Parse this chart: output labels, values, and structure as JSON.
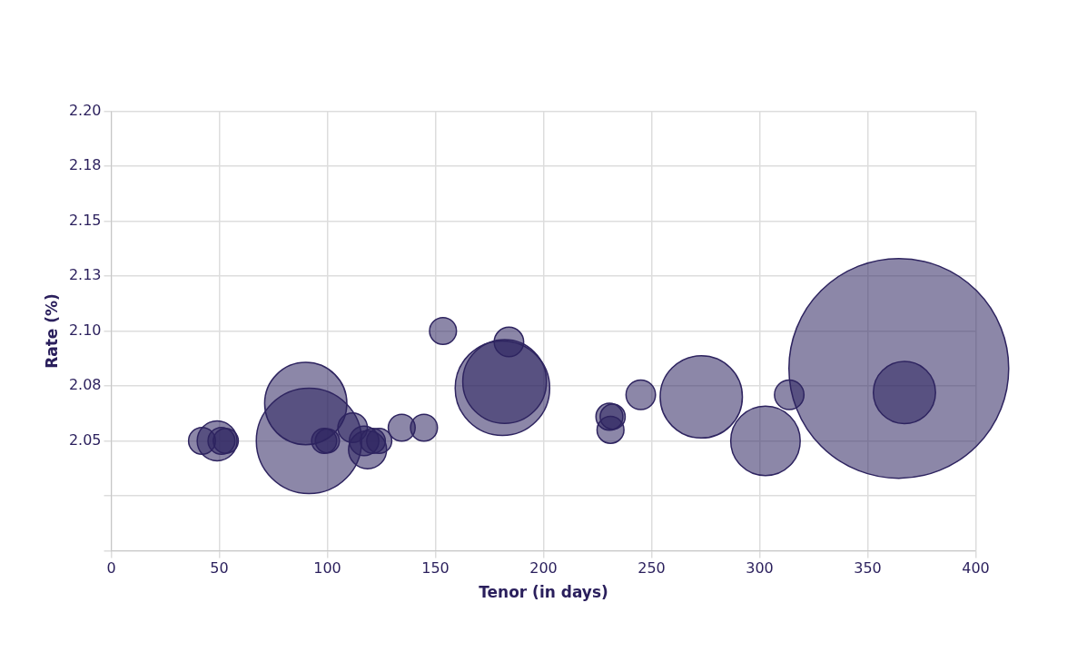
{
  "chart_data": {
    "type": "bubble",
    "xlabel": "Tenor (in days)",
    "ylabel": "Rate (%)",
    "x": [
      42,
      49,
      51,
      53,
      90,
      91.5,
      98.5,
      100,
      111.7,
      117,
      118.6,
      121,
      124,
      134.4,
      144.7,
      153.5,
      184,
      181,
      182,
      230.5,
      232,
      231,
      245,
      273,
      302.7,
      313.7,
      364.4,
      367
    ],
    "values": [
      2.05,
      2.05,
      2.05,
      2.05,
      2.067,
      2.05,
      2.05,
      2.05,
      2.056,
      2.05,
      2.046,
      2.05,
      2.05,
      2.056,
      2.056,
      2.1,
      2.095,
      2.074,
      2.077,
      2.061,
      2.061,
      2.055,
      2.071,
      2.07,
      2.05,
      2.071,
      2.083,
      2.072
    ],
    "sizes": [
      0.015,
      0.033,
      0.015,
      0.013,
      0.14,
      0.23,
      0.013,
      0.012,
      0.018,
      0.018,
      0.03,
      0.013,
      0.013,
      0.015,
      0.015,
      0.015,
      0.018,
      0.185,
      0.145,
      0.015,
      0.013,
      0.015,
      0.018,
      0.14,
      0.1,
      0.018,
      1,
      0.08
    ],
    "color": "#2e2460",
    "xlim": [
      0,
      400
    ],
    "xticks": [
      0,
      50,
      100,
      150,
      200,
      250,
      300,
      350,
      400
    ],
    "ylim": [
      2.0,
      2.2
    ],
    "yticks": [
      {
        "value": 2.0,
        "label": null
      },
      {
        "value": 2.025,
        "label": null
      },
      2.05,
      {
        "value": 2.075,
        "label": "2.08"
      },
      {
        "value": 2.1,
        "label": "2.10"
      },
      {
        "value": 2.125,
        "label": "2.13"
      },
      2.15,
      {
        "value": 2.175,
        "label": "2.18"
      },
      {
        "value": 2.2,
        "label": "2.20"
      }
    ],
    "grid": true,
    "legend": false
  }
}
